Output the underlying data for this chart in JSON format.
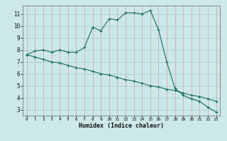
{
  "xlabel": "Humidex (Indice chaleur)",
  "background_color": "#cce8e8",
  "plot_bg_color": "#cce8e8",
  "grid_color_minor": "#e8c8c8",
  "grid_color_major": "#c8d8d8",
  "line_color": "#1a6b5a",
  "xlim": [
    -0.5,
    23.5
  ],
  "ylim": [
    2.5,
    11.7
  ],
  "yticks": [
    3,
    4,
    5,
    6,
    7,
    8,
    9,
    10,
    11
  ],
  "xticks": [
    0,
    1,
    2,
    3,
    4,
    5,
    6,
    7,
    8,
    9,
    10,
    11,
    12,
    13,
    14,
    15,
    16,
    17,
    18,
    19,
    20,
    21,
    22,
    23
  ],
  "curve1_x": [
    0,
    1,
    2,
    3,
    4,
    5,
    6,
    7,
    8,
    9,
    10,
    11,
    12,
    13,
    14,
    15,
    16,
    17,
    18,
    19,
    20,
    21,
    22,
    23
  ],
  "curve1_y": [
    7.6,
    7.9,
    8.0,
    7.8,
    8.0,
    7.8,
    7.8,
    8.2,
    9.9,
    9.6,
    10.6,
    10.5,
    11.1,
    11.1,
    11.0,
    11.3,
    9.7,
    7.0,
    4.8,
    4.2,
    3.9,
    3.7,
    3.2,
    2.8
  ],
  "curve2_x": [
    0,
    1,
    2,
    3,
    4,
    5,
    6,
    7,
    8,
    9,
    10,
    11,
    12,
    13,
    14,
    15,
    16,
    17,
    18,
    19,
    20,
    21,
    22,
    23
  ],
  "curve2_y": [
    7.6,
    7.4,
    7.2,
    7.0,
    6.9,
    6.7,
    6.5,
    6.4,
    6.2,
    6.0,
    5.9,
    5.7,
    5.5,
    5.4,
    5.2,
    5.0,
    4.9,
    4.7,
    4.6,
    4.4,
    4.2,
    4.1,
    3.9,
    3.7
  ]
}
